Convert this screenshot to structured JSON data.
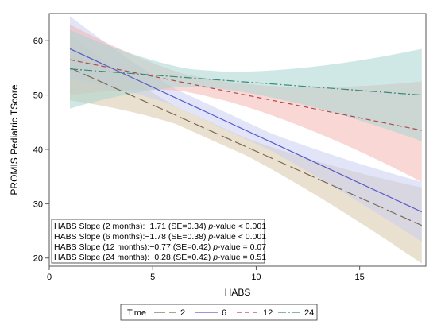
{
  "chart_data": {
    "type": "line",
    "title": "",
    "xlabel": "HABS",
    "ylabel": "PROMIS Pediatric TScore",
    "xlim": [
      0,
      18.2
    ],
    "ylim": [
      18.5,
      65
    ],
    "xticks": [
      0,
      5,
      10,
      15
    ],
    "yticks": [
      20,
      30,
      40,
      50,
      60
    ],
    "grid": false,
    "legend": {
      "title": "Time",
      "position": "bottom",
      "entries": [
        "2",
        "6",
        "12",
        "24"
      ]
    },
    "x": [
      1,
      18
    ],
    "series": [
      {
        "name": "2",
        "color": "#7a6a55",
        "band_color": "#d9c6a8",
        "dash": "long-dash",
        "values": [
          55,
          26
        ],
        "ci_lower": [
          49,
          19
        ],
        "ci_upper": [
          61,
          33
        ]
      },
      {
        "name": "6",
        "color": "#5a5ac8",
        "band_color": "#c9d0f0",
        "dash": "solid",
        "values": [
          58.5,
          28.5
        ],
        "ci_lower": [
          53,
          23
        ],
        "ci_upper": [
          64.5,
          34
        ]
      },
      {
        "name": "12",
        "color": "#b04850",
        "band_color": "#f4b6b3",
        "dash": "short-dash",
        "values": [
          56.5,
          43.5
        ],
        "ci_lower": [
          50,
          34
        ],
        "ci_upper": [
          63,
          52.5
        ]
      },
      {
        "name": "24",
        "color": "#3a8a78",
        "band_color": "#a8d6d0",
        "dash": "dash-dot",
        "values": [
          54.8,
          50
        ],
        "ci_lower": [
          47.5,
          41.5
        ],
        "ci_upper": [
          62,
          58.5
        ]
      }
    ],
    "annotations": [
      {
        "prefix": "HABS Slope (2 months):−1.71 (SE=0.34) ",
        "italic": "p",
        "suffix": "-value < 0.001"
      },
      {
        "prefix": "HABS Slope (6 months):−1.78 (SE=0.38) ",
        "italic": "p",
        "suffix": "-value < 0.001"
      },
      {
        "prefix": "HABS Slope (12 months):−0.77 (SE=0.42) ",
        "italic": "p",
        "suffix": "-value = 0.07"
      },
      {
        "prefix": "HABS Slope (24 months):−0.28 (SE=0.42) ",
        "italic": "p",
        "suffix": "-value = 0.51"
      }
    ]
  }
}
